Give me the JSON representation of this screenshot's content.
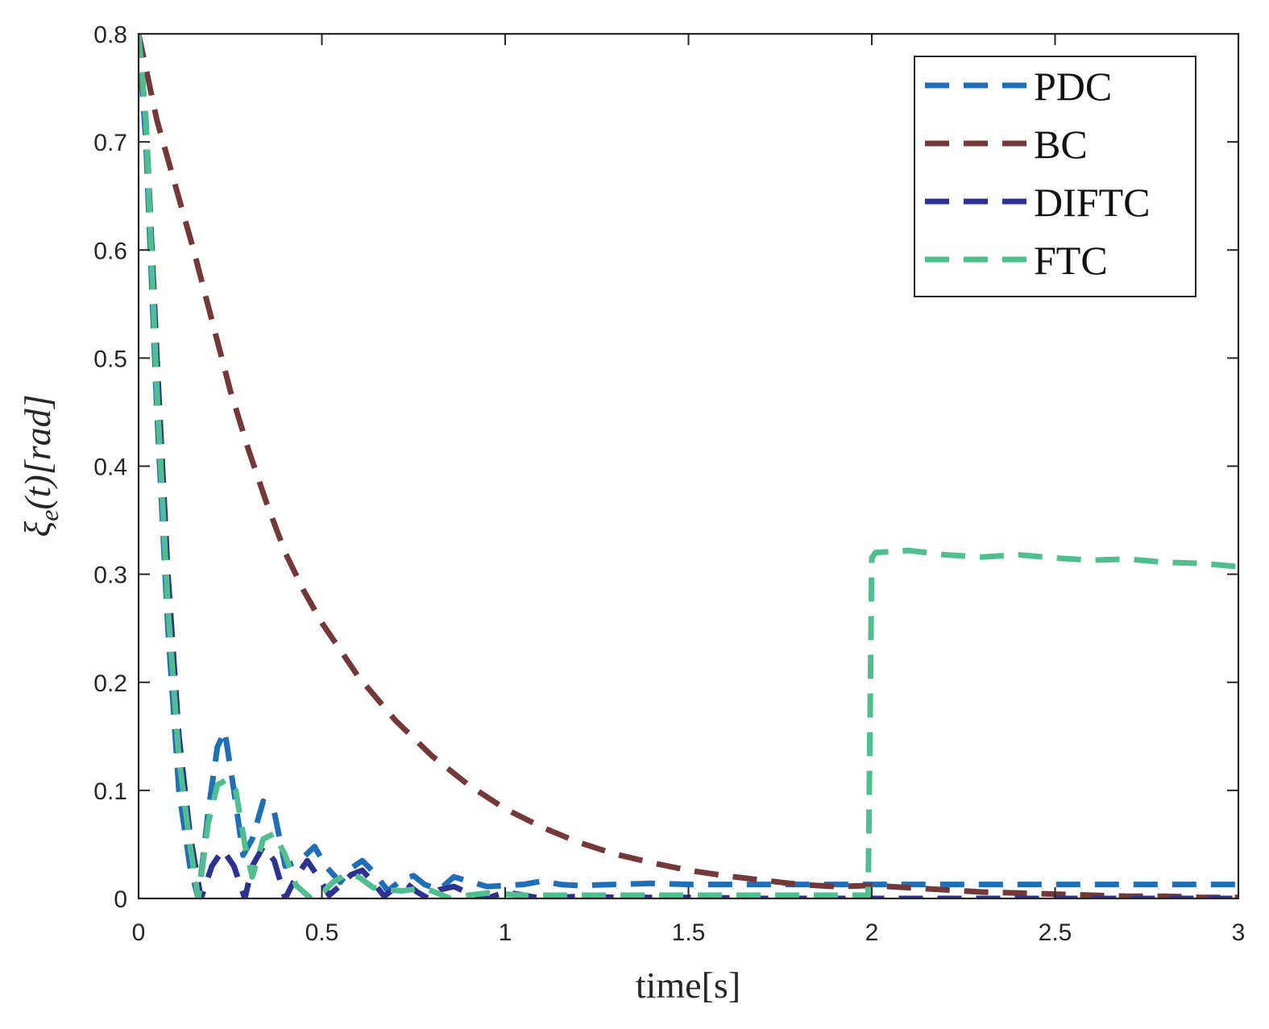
{
  "chart_data": {
    "type": "line",
    "title": "",
    "xlabel": "time[s]",
    "ylabel_parts": {
      "xi": "ξ",
      "sub": "e",
      "t": "(t)",
      "unit": "[rad]"
    },
    "xlim": [
      0,
      3
    ],
    "ylim": [
      0,
      0.8
    ],
    "xticks": [
      0,
      0.5,
      1,
      1.5,
      2,
      2.5,
      3
    ],
    "xtick_labels": [
      "0",
      "0.5",
      "1",
      "1.5",
      "2",
      "2.5",
      "3"
    ],
    "yticks": [
      0,
      0.1,
      0.2,
      0.3,
      0.4,
      0.5,
      0.6,
      0.7,
      0.8
    ],
    "ytick_labels": [
      "0",
      "0.1",
      "0.2",
      "0.3",
      "0.4",
      "0.5",
      "0.6",
      "0.7",
      "0.8"
    ],
    "grid": false,
    "legend_position": "top-right",
    "series": [
      {
        "name": "PDC",
        "color": "#1f6fb8",
        "x": [
          0,
          0.02,
          0.05,
          0.08,
          0.11,
          0.14,
          0.163,
          0.19,
          0.215,
          0.235,
          0.26,
          0.285,
          0.31,
          0.34,
          0.37,
          0.4,
          0.44,
          0.48,
          0.51,
          0.55,
          0.58,
          0.61,
          0.64,
          0.68,
          0.72,
          0.75,
          0.78,
          0.82,
          0.86,
          0.9,
          0.95,
          1.0,
          1.05,
          1.1,
          1.15,
          1.2,
          1.3,
          1.4,
          1.5,
          1.6,
          1.7,
          1.8,
          1.9,
          2.0,
          2.1,
          2.2,
          2.3,
          2.4,
          2.5,
          2.6,
          2.7,
          2.8,
          2.9,
          3.0
        ],
        "y": [
          0.8,
          0.7,
          0.45,
          0.25,
          0.1,
          0.03,
          0.0,
          0.08,
          0.14,
          0.155,
          0.1,
          0.04,
          0.055,
          0.09,
          0.08,
          0.03,
          0.035,
          0.048,
          0.03,
          0.015,
          0.028,
          0.035,
          0.025,
          0.007,
          0.018,
          0.021,
          0.013,
          0.008,
          0.02,
          0.016,
          0.011,
          0.012,
          0.013,
          0.016,
          0.013,
          0.012,
          0.013,
          0.014,
          0.013,
          0.013,
          0.013,
          0.013,
          0.013,
          0.013,
          0.013,
          0.013,
          0.013,
          0.013,
          0.013,
          0.013,
          0.013,
          0.013,
          0.013,
          0.013
        ]
      },
      {
        "name": "BC",
        "color": "#73383a",
        "x": [
          0,
          0.05,
          0.1,
          0.15,
          0.2,
          0.25,
          0.3,
          0.35,
          0.4,
          0.45,
          0.5,
          0.6,
          0.7,
          0.8,
          0.9,
          1.0,
          1.1,
          1.2,
          1.3,
          1.4,
          1.5,
          1.6,
          1.7,
          1.8,
          1.9,
          2.0,
          2.1,
          2.2,
          2.3,
          2.4,
          2.5,
          2.6,
          2.7,
          2.8,
          2.9,
          3.0
        ],
        "y": [
          0.8,
          0.72,
          0.66,
          0.6,
          0.535,
          0.47,
          0.415,
          0.365,
          0.32,
          0.285,
          0.255,
          0.205,
          0.165,
          0.132,
          0.105,
          0.083,
          0.066,
          0.052,
          0.041,
          0.033,
          0.026,
          0.021,
          0.017,
          0.013,
          0.011,
          0.012,
          0.01,
          0.008,
          0.006,
          0.005,
          0.004,
          0.003,
          0.002,
          0.002,
          0.001,
          0.001
        ]
      },
      {
        "name": "DIFTC",
        "color": "#2e3192",
        "x": [
          0,
          0.02,
          0.05,
          0.08,
          0.11,
          0.14,
          0.17,
          0.2,
          0.23,
          0.26,
          0.29,
          0.31,
          0.34,
          0.37,
          0.4,
          0.43,
          0.46,
          0.49,
          0.52,
          0.55,
          0.58,
          0.61,
          0.64,
          0.67,
          0.7,
          0.73,
          0.76,
          0.79,
          0.82,
          0.86,
          0.9,
          0.95,
          1.0,
          1.05,
          1.1,
          1.2,
          1.3,
          1.5,
          1.7,
          2.0,
          2.3,
          2.6,
          3.0
        ],
        "y": [
          0.8,
          0.72,
          0.5,
          0.3,
          0.15,
          0.06,
          0.0,
          0.03,
          0.045,
          0.03,
          0.0,
          0.03,
          0.048,
          0.035,
          0.0,
          0.02,
          0.035,
          0.02,
          0.003,
          0.012,
          0.022,
          0.026,
          0.015,
          0.002,
          0.01,
          0.014,
          0.006,
          0.0,
          0.008,
          0.011,
          0.005,
          0.0,
          0.006,
          0.003,
          0.0,
          0.002,
          0.001,
          0.001,
          0.0,
          0.0,
          0.0,
          0.0,
          0.0
        ]
      },
      {
        "name": "FTC",
        "color": "#4fbf8f",
        "x": [
          0,
          0.02,
          0.05,
          0.08,
          0.11,
          0.14,
          0.163,
          0.19,
          0.215,
          0.24,
          0.265,
          0.29,
          0.31,
          0.34,
          0.37,
          0.4,
          0.43,
          0.47,
          0.5,
          0.53,
          0.57,
          0.6,
          0.64,
          0.68,
          0.72,
          0.76,
          0.8,
          0.85,
          0.9,
          0.95,
          1.0,
          1.05,
          1.1,
          1.2,
          1.4,
          1.6,
          1.8,
          1.99,
          2.0,
          2.01,
          2.1,
          2.2,
          2.3,
          2.4,
          2.5,
          2.6,
          2.7,
          2.8,
          2.9,
          3.0
        ],
        "y": [
          0.8,
          0.72,
          0.47,
          0.27,
          0.13,
          0.05,
          0.0,
          0.07,
          0.105,
          0.11,
          0.1,
          0.05,
          0.02,
          0.055,
          0.06,
          0.04,
          0.012,
          0.0,
          0.005,
          0.015,
          0.023,
          0.02,
          0.01,
          0.008,
          0.007,
          0.009,
          0.007,
          0.0,
          0.003,
          0.005,
          0.004,
          0.003,
          0.003,
          0.003,
          0.003,
          0.003,
          0.003,
          0.003,
          0.315,
          0.32,
          0.322,
          0.318,
          0.316,
          0.318,
          0.315,
          0.313,
          0.314,
          0.311,
          0.31,
          0.307
        ]
      }
    ]
  }
}
